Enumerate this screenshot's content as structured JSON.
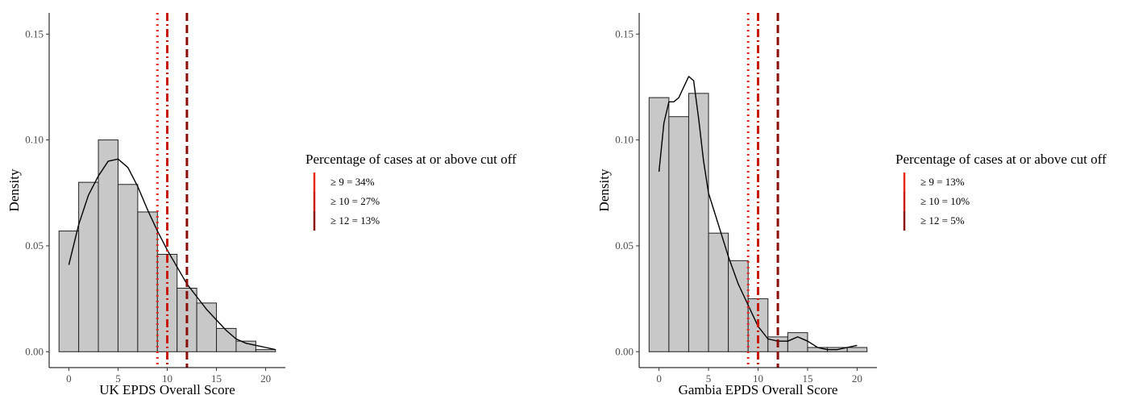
{
  "colors": {
    "bar_fill": "#c8c8c8",
    "bar_stroke": "#222222",
    "density_line": "#000000",
    "cut9": "#e8271a",
    "cut10": "#c9190c",
    "cut12": "#8b0f08"
  },
  "chart_data": [
    {
      "type": "bar",
      "subtype": "histogram-with-density",
      "xlabel": "UK EPDS Overall Score",
      "ylabel": "Density",
      "xlim": [
        -2,
        22
      ],
      "ylim": [
        -0.0075,
        0.16
      ],
      "x_ticks": [
        0,
        5,
        10,
        15,
        20
      ],
      "y_ticks": [
        0.0,
        0.05,
        0.1,
        0.15
      ],
      "y_tick_labels": [
        "0.00",
        "0.05",
        "0.10",
        "0.15"
      ],
      "bin_edges": [
        -1,
        1,
        3,
        5,
        7,
        9,
        11,
        13,
        15,
        17,
        19,
        21
      ],
      "values": [
        0.057,
        0.08,
        0.1,
        0.079,
        0.066,
        0.046,
        0.03,
        0.023,
        0.011,
        0.005,
        0.001
      ],
      "density_x": [
        0,
        1,
        2,
        3,
        4,
        5,
        6,
        7,
        8,
        9,
        10,
        11,
        12,
        13,
        14,
        15,
        16,
        17,
        18,
        19,
        20,
        21
      ],
      "density_y": [
        0.041,
        0.06,
        0.074,
        0.083,
        0.09,
        0.091,
        0.087,
        0.078,
        0.067,
        0.057,
        0.048,
        0.04,
        0.032,
        0.026,
        0.02,
        0.015,
        0.01,
        0.006,
        0.004,
        0.003,
        0.002,
        0.001
      ],
      "cutoffs": [
        {
          "x": 9,
          "style": "dotted",
          "color": "#e8271a"
        },
        {
          "x": 10,
          "style": "dashdot",
          "color": "#c9190c"
        },
        {
          "x": 12,
          "style": "dashed",
          "color": "#8b0f08"
        }
      ],
      "legend": {
        "title": "Percentage of cases at or above cut off",
        "placement": "right",
        "entries": [
          "≥ 9 = 34%",
          "≥ 10 = 27%",
          "≥ 12 = 13%"
        ]
      }
    },
    {
      "type": "bar",
      "subtype": "histogram-with-density",
      "xlabel": "Gambia EPDS Overall Score",
      "ylabel": "Density",
      "xlim": [
        -2,
        22
      ],
      "ylim": [
        -0.0075,
        0.16
      ],
      "x_ticks": [
        0,
        5,
        10,
        15,
        20
      ],
      "y_ticks": [
        0.0,
        0.05,
        0.1,
        0.15
      ],
      "y_tick_labels": [
        "0.00",
        "0.05",
        "0.10",
        "0.15"
      ],
      "bin_edges": [
        -1,
        1,
        3,
        5,
        7,
        9,
        11,
        13,
        15,
        17,
        19,
        21
      ],
      "values": [
        0.12,
        0.111,
        0.122,
        0.056,
        0.043,
        0.025,
        0.007,
        0.009,
        0.002,
        0.002,
        0.002
      ],
      "density_x": [
        0,
        0.5,
        1,
        1.5,
        2,
        2.5,
        3,
        3.5,
        4,
        4.5,
        5,
        6,
        7,
        8,
        9,
        10,
        11,
        12,
        13,
        14,
        15,
        16,
        17,
        18,
        19,
        20
      ],
      "density_y": [
        0.085,
        0.108,
        0.118,
        0.118,
        0.12,
        0.125,
        0.13,
        0.128,
        0.11,
        0.09,
        0.075,
        0.06,
        0.045,
        0.032,
        0.022,
        0.012,
        0.006,
        0.005,
        0.005,
        0.007,
        0.005,
        0.002,
        0.001,
        0.001,
        0.002,
        0.003
      ],
      "cutoffs": [
        {
          "x": 9,
          "style": "dotted",
          "color": "#e8271a"
        },
        {
          "x": 10,
          "style": "dashdot",
          "color": "#c9190c"
        },
        {
          "x": 12,
          "style": "dashed",
          "color": "#8b0f08"
        }
      ],
      "legend": {
        "title": "Percentage of cases at or above cut off",
        "placement": "right",
        "entries": [
          "≥ 9 = 13%",
          "≥ 10 = 10%",
          "≥ 12 = 5%"
        ]
      }
    }
  ]
}
